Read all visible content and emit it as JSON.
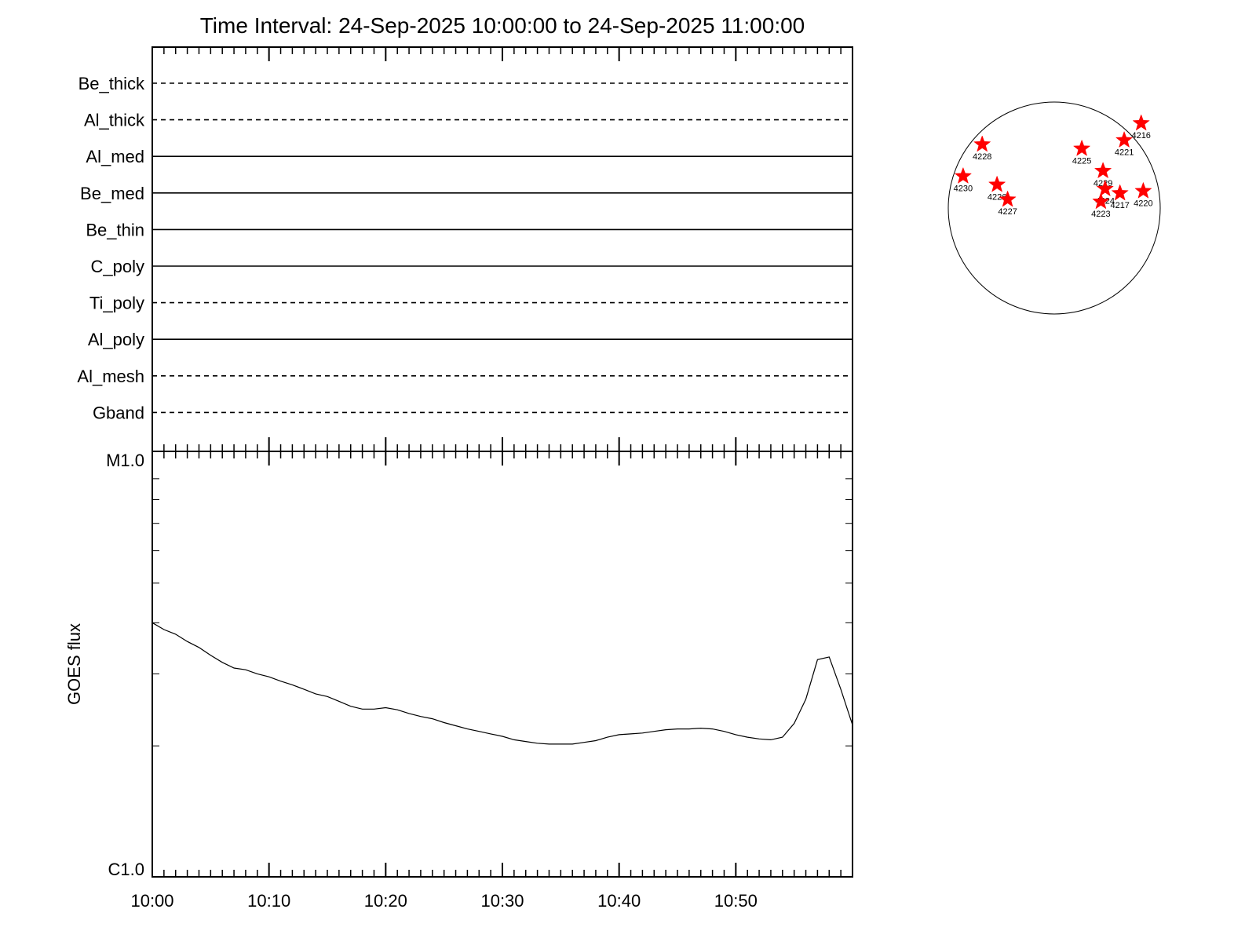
{
  "chart_data": [
    {
      "type": "line",
      "title": "Time Interval: 24-Sep-2025 10:00:00 to 24-Sep-2025 11:00:00",
      "panel": "detector status",
      "xlim": [
        "10:00",
        "11:00"
      ],
      "series": [
        {
          "name": "Be_thick",
          "style": "dashed"
        },
        {
          "name": "Al_thick",
          "style": "dashed"
        },
        {
          "name": "Al_med",
          "style": "solid"
        },
        {
          "name": "Be_med",
          "style": "solid"
        },
        {
          "name": "Be_thin",
          "style": "solid"
        },
        {
          "name": "C_poly",
          "style": "solid"
        },
        {
          "name": "Ti_poly",
          "style": "dashed"
        },
        {
          "name": "Al_poly",
          "style": "solid"
        },
        {
          "name": "Al_mesh",
          "style": "dashed"
        },
        {
          "name": "Gband",
          "style": "dashed"
        }
      ]
    },
    {
      "type": "line",
      "ylabel": "GOES flux",
      "yscale": "log",
      "ylim": [
        1e-06,
        1e-05
      ],
      "ytick_labels": [
        "C1.0",
        "M1.0"
      ],
      "xlabel": "",
      "xlim": [
        0,
        60
      ],
      "x_tick_labels": [
        "10:00",
        "10:10",
        "10:20",
        "10:30",
        "10:40",
        "10:50"
      ],
      "x_tick_positions": [
        0,
        10,
        20,
        30,
        40,
        50
      ],
      "series": [
        {
          "x": [
            0,
            1,
            2,
            3,
            4,
            5,
            6,
            7,
            8,
            9,
            10,
            11,
            12,
            13,
            14,
            15,
            16,
            17,
            18,
            19,
            20,
            21,
            22,
            23,
            24,
            25,
            26,
            27,
            28,
            29,
            30,
            31,
            32,
            33,
            34,
            35,
            36,
            37,
            38,
            39,
            40,
            41,
            42,
            43,
            44,
            45,
            46,
            47,
            48,
            49,
            50,
            51,
            52,
            53,
            54,
            55,
            56,
            57,
            58,
            59,
            60
          ],
          "y": [
            4e-06,
            3.85e-06,
            3.75e-06,
            3.6e-06,
            3.48e-06,
            3.33e-06,
            3.2e-06,
            3.1e-06,
            3.07e-06,
            3e-06,
            2.95e-06,
            2.88e-06,
            2.82e-06,
            2.75e-06,
            2.68e-06,
            2.64e-06,
            2.57e-06,
            2.5e-06,
            2.46e-06,
            2.46e-06,
            2.48e-06,
            2.45e-06,
            2.4e-06,
            2.36e-06,
            2.33e-06,
            2.28e-06,
            2.24e-06,
            2.2e-06,
            2.17e-06,
            2.14e-06,
            2.11e-06,
            2.07e-06,
            2.05e-06,
            2.03e-06,
            2.02e-06,
            2.02e-06,
            2.02e-06,
            2.04e-06,
            2.06e-06,
            2.1e-06,
            2.13e-06,
            2.14e-06,
            2.15e-06,
            2.17e-06,
            2.19e-06,
            2.2e-06,
            2.2e-06,
            2.21e-06,
            2.2e-06,
            2.17e-06,
            2.13e-06,
            2.1e-06,
            2.08e-06,
            2.07e-06,
            2.1e-06,
            2.27e-06,
            2.6e-06,
            3.25e-06,
            3.3e-06,
            2.75e-06,
            2.25e-06
          ]
        }
      ]
    },
    {
      "type": "scatter",
      "panel": "solar disk active regions",
      "points": [
        {
          "label": "4216",
          "x": 0.82,
          "y": -0.8
        },
        {
          "label": "4221",
          "x": 0.66,
          "y": -0.64
        },
        {
          "label": "4225",
          "x": 0.26,
          "y": -0.56
        },
        {
          "label": "4228",
          "x": -0.68,
          "y": -0.6
        },
        {
          "label": "4229",
          "x": 0.46,
          "y": -0.35
        },
        {
          "label": "4230",
          "x": -0.86,
          "y": -0.3
        },
        {
          "label": "4226",
          "x": -0.54,
          "y": -0.22
        },
        {
          "label": "4227",
          "x": -0.44,
          "y": -0.08
        },
        {
          "label": "4224",
          "x": 0.48,
          "y": -0.18
        },
        {
          "label": "4217",
          "x": 0.62,
          "y": -0.14
        },
        {
          "label": "4220",
          "x": 0.84,
          "y": -0.16
        },
        {
          "label": "4223",
          "x": 0.44,
          "y": -0.06
        }
      ]
    }
  ]
}
